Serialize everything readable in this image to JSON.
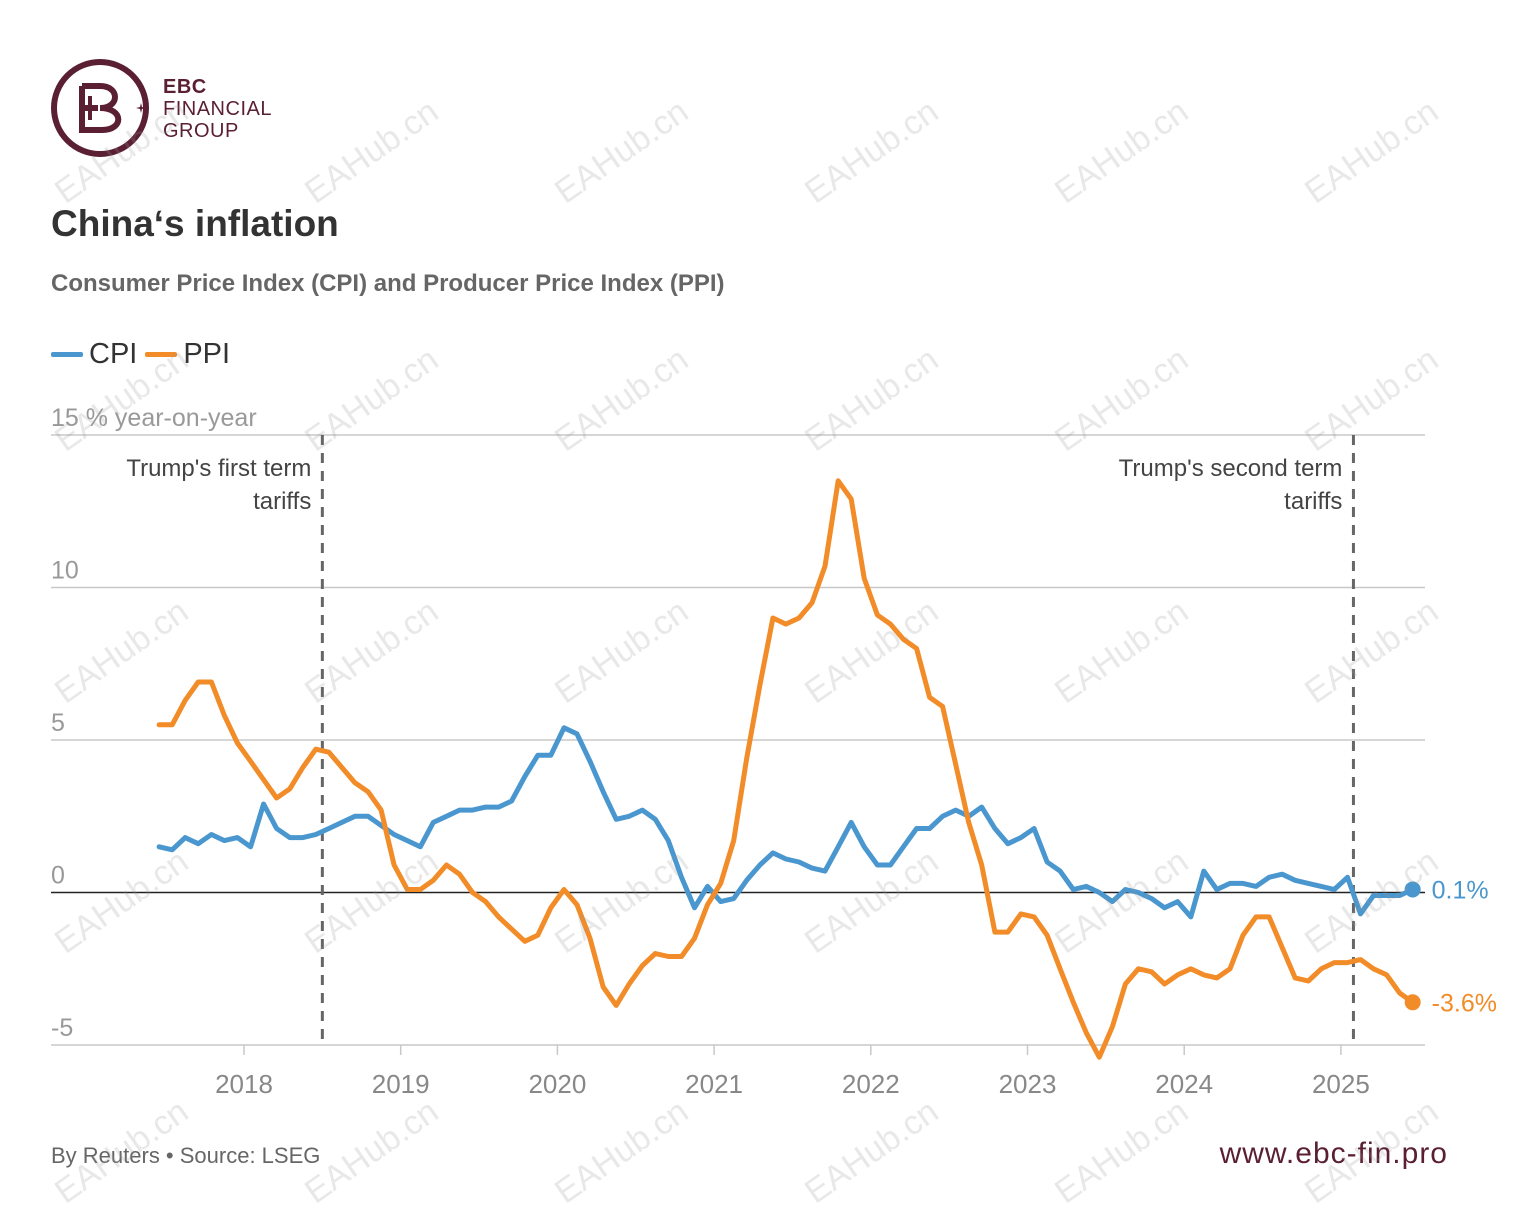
{
  "brand": {
    "line1": "EBC",
    "line2": "FINANCIAL",
    "line3": "GROUP",
    "color": "#5a1f33",
    "website": "www.ebc-fin.pro"
  },
  "header": {
    "title": "China‘s inflation",
    "subtitle": "Consumer Price Index (CPI) and Producer Price Index (PPI)"
  },
  "footer": {
    "source": "By Reuters • Source: LSEG"
  },
  "watermark": "EAHub.cn",
  "chart_data": {
    "type": "line",
    "title": "China‘s inflation",
    "subtitle": "Consumer Price Index (CPI) and Producer Price Index (PPI)",
    "ylabel": "% year-on-year",
    "xlabel": "",
    "ylim": [
      -5,
      15
    ],
    "xlim": [
      2017.4,
      2025.5
    ],
    "y_ticks": [
      -5,
      0,
      5,
      10,
      15
    ],
    "y_tick_labels": [
      "-5",
      "0",
      "5",
      "10",
      "15"
    ],
    "x_ticks": [
      2018,
      2019,
      2020,
      2021,
      2022,
      2023,
      2024,
      2025
    ],
    "x_tick_labels": [
      "2018",
      "2019",
      "2020",
      "2021",
      "2022",
      "2023",
      "2024",
      "2025"
    ],
    "grid": true,
    "legend": "top-left",
    "annotations": [
      {
        "x": 2018.5,
        "lines": [
          "Trump's first term",
          "tariffs"
        ],
        "align": "left-of-line"
      },
      {
        "x": 2025.08,
        "lines": [
          "Trump's second term",
          "tariffs"
        ],
        "align": "left-of-line"
      }
    ],
    "series": [
      {
        "name": "CPI",
        "color": "#4a97cf",
        "end_label": "0.1%",
        "x": [
          2017.458,
          2017.542,
          2017.625,
          2017.708,
          2017.792,
          2017.875,
          2017.958,
          2018.042,
          2018.125,
          2018.208,
          2018.292,
          2018.375,
          2018.458,
          2018.542,
          2018.625,
          2018.708,
          2018.792,
          2018.875,
          2018.958,
          2019.042,
          2019.125,
          2019.208,
          2019.292,
          2019.375,
          2019.458,
          2019.542,
          2019.625,
          2019.708,
          2019.792,
          2019.875,
          2019.958,
          2020.042,
          2020.125,
          2020.208,
          2020.292,
          2020.375,
          2020.458,
          2020.542,
          2020.625,
          2020.708,
          2020.792,
          2020.875,
          2020.958,
          2021.042,
          2021.125,
          2021.208,
          2021.292,
          2021.375,
          2021.458,
          2021.542,
          2021.625,
          2021.708,
          2021.792,
          2021.875,
          2021.958,
          2022.042,
          2022.125,
          2022.208,
          2022.292,
          2022.375,
          2022.458,
          2022.542,
          2022.625,
          2022.708,
          2022.792,
          2022.875,
          2022.958,
          2023.042,
          2023.125,
          2023.208,
          2023.292,
          2023.375,
          2023.458,
          2023.542,
          2023.625,
          2023.708,
          2023.792,
          2023.875,
          2023.958,
          2024.042,
          2024.125,
          2024.208,
          2024.292,
          2024.375,
          2024.458,
          2024.542,
          2024.625,
          2024.708,
          2024.792,
          2024.875,
          2024.958,
          2025.042,
          2025.125,
          2025.208,
          2025.292,
          2025.375,
          2025.458
        ],
        "y": [
          1.5,
          1.4,
          1.8,
          1.6,
          1.9,
          1.7,
          1.8,
          1.5,
          2.9,
          2.1,
          1.8,
          1.8,
          1.9,
          2.1,
          2.3,
          2.5,
          2.5,
          2.2,
          1.9,
          1.7,
          1.5,
          2.3,
          2.5,
          2.7,
          2.7,
          2.8,
          2.8,
          3.0,
          3.8,
          4.5,
          4.5,
          5.4,
          5.2,
          4.3,
          3.3,
          2.4,
          2.5,
          2.7,
          2.4,
          1.7,
          0.5,
          -0.5,
          0.2,
          -0.3,
          -0.2,
          0.4,
          0.9,
          1.3,
          1.1,
          1.0,
          0.8,
          0.7,
          1.5,
          2.3,
          1.5,
          0.9,
          0.9,
          1.5,
          2.1,
          2.1,
          2.5,
          2.7,
          2.5,
          2.8,
          2.1,
          1.6,
          1.8,
          2.1,
          1.0,
          0.7,
          0.1,
          0.2,
          0.0,
          -0.3,
          0.1,
          0.0,
          -0.2,
          -0.5,
          -0.3,
          -0.8,
          0.7,
          0.1,
          0.3,
          0.3,
          0.2,
          0.5,
          0.6,
          0.4,
          0.3,
          0.2,
          0.1,
          0.5,
          -0.7,
          -0.1,
          -0.1,
          -0.1,
          0.1
        ]
      },
      {
        "name": "PPI",
        "color": "#f28c28",
        "end_label": "-3.6%",
        "x": [
          2017.458,
          2017.542,
          2017.625,
          2017.708,
          2017.792,
          2017.875,
          2017.958,
          2018.042,
          2018.125,
          2018.208,
          2018.292,
          2018.375,
          2018.458,
          2018.542,
          2018.625,
          2018.708,
          2018.792,
          2018.875,
          2018.958,
          2019.042,
          2019.125,
          2019.208,
          2019.292,
          2019.375,
          2019.458,
          2019.542,
          2019.625,
          2019.708,
          2019.792,
          2019.875,
          2019.958,
          2020.042,
          2020.125,
          2020.208,
          2020.292,
          2020.375,
          2020.458,
          2020.542,
          2020.625,
          2020.708,
          2020.792,
          2020.875,
          2020.958,
          2021.042,
          2021.125,
          2021.208,
          2021.292,
          2021.375,
          2021.458,
          2021.542,
          2021.625,
          2021.708,
          2021.792,
          2021.875,
          2021.958,
          2022.042,
          2022.125,
          2022.208,
          2022.292,
          2022.375,
          2022.458,
          2022.542,
          2022.625,
          2022.708,
          2022.792,
          2022.875,
          2022.958,
          2023.042,
          2023.125,
          2023.208,
          2023.292,
          2023.375,
          2023.458,
          2023.542,
          2023.625,
          2023.708,
          2023.792,
          2023.875,
          2023.958,
          2024.042,
          2024.125,
          2024.208,
          2024.292,
          2024.375,
          2024.458,
          2024.542,
          2024.625,
          2024.708,
          2024.792,
          2024.875,
          2024.958,
          2025.042,
          2025.125,
          2025.208,
          2025.292,
          2025.375,
          2025.458
        ],
        "y": [
          5.5,
          5.5,
          6.3,
          6.9,
          6.9,
          5.8,
          4.9,
          4.3,
          3.7,
          3.1,
          3.4,
          4.1,
          4.7,
          4.6,
          4.1,
          3.6,
          3.3,
          2.7,
          0.9,
          0.1,
          0.1,
          0.4,
          0.9,
          0.6,
          0.0,
          -0.3,
          -0.8,
          -1.2,
          -1.6,
          -1.4,
          -0.5,
          0.1,
          -0.4,
          -1.5,
          -3.1,
          -3.7,
          -3.0,
          -2.4,
          -2.0,
          -2.1,
          -2.1,
          -1.5,
          -0.4,
          0.3,
          1.7,
          4.4,
          6.8,
          9.0,
          8.8,
          9.0,
          9.5,
          10.7,
          13.5,
          12.9,
          10.3,
          9.1,
          8.8,
          8.3,
          8.0,
          6.4,
          6.1,
          4.2,
          2.3,
          0.9,
          -1.3,
          -1.3,
          -0.7,
          -0.8,
          -1.4,
          -2.5,
          -3.6,
          -4.6,
          -5.4,
          -4.4,
          -3.0,
          -2.5,
          -2.6,
          -3.0,
          -2.7,
          -2.5,
          -2.7,
          -2.8,
          -2.5,
          -1.4,
          -0.8,
          -0.8,
          -1.8,
          -2.8,
          -2.9,
          -2.5,
          -2.3,
          -2.3,
          -2.2,
          -2.5,
          -2.7,
          -3.3,
          -3.6
        ]
      }
    ]
  }
}
